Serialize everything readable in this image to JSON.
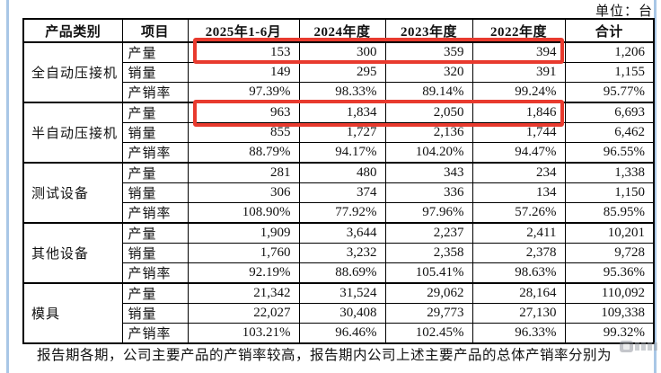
{
  "page": {
    "unit_label": "单位：台"
  },
  "table": {
    "headers": [
      "产品类别",
      "项目",
      "2025年1-6月",
      "2024年度",
      "2023年度",
      "2022年度",
      "合计"
    ],
    "groups": [
      {
        "category": "全自动压接机",
        "rows": [
          {
            "item": "产量",
            "values": [
              "153",
              "300",
              "359",
              "394",
              "1,206"
            ],
            "highlighted": true
          },
          {
            "item": "销量",
            "values": [
              "149",
              "295",
              "320",
              "391",
              "1,155"
            ],
            "highlighted": false
          },
          {
            "item": "产销率",
            "values": [
              "97.39%",
              "98.33%",
              "89.14%",
              "99.24%",
              "95.77%"
            ],
            "highlighted": false
          }
        ]
      },
      {
        "category": "半自动压接机",
        "rows": [
          {
            "item": "产量",
            "values": [
              "963",
              "1,834",
              "2,050",
              "1,846",
              "6,693"
            ],
            "highlighted": true
          },
          {
            "item": "销量",
            "values": [
              "855",
              "1,727",
              "2,136",
              "1,744",
              "6,462"
            ],
            "highlighted": false
          },
          {
            "item": "产销率",
            "values": [
              "88.79%",
              "94.17%",
              "104.20%",
              "94.47%",
              "96.55%"
            ],
            "highlighted": false
          }
        ]
      },
      {
        "category": "测试设备",
        "rows": [
          {
            "item": "产量",
            "values": [
              "281",
              "480",
              "343",
              "234",
              "1,338"
            ],
            "highlighted": false
          },
          {
            "item": "销量",
            "values": [
              "306",
              "374",
              "336",
              "134",
              "1,150"
            ],
            "highlighted": false
          },
          {
            "item": "产销率",
            "values": [
              "108.90%",
              "77.92%",
              "97.96%",
              "57.26%",
              "85.95%"
            ],
            "highlighted": false
          }
        ]
      },
      {
        "category": "其他设备",
        "rows": [
          {
            "item": "产量",
            "values": [
              "1,909",
              "3,644",
              "2,237",
              "2,411",
              "10,201"
            ],
            "highlighted": false
          },
          {
            "item": "销量",
            "values": [
              "1,760",
              "3,232",
              "2,358",
              "2,378",
              "9,728"
            ],
            "highlighted": false
          },
          {
            "item": "产销率",
            "values": [
              "92.19%",
              "88.69%",
              "105.41%",
              "98.63%",
              "95.36%"
            ],
            "highlighted": false
          }
        ]
      },
      {
        "category": "模具",
        "rows": [
          {
            "item": "产量",
            "values": [
              "21,342",
              "31,524",
              "29,062",
              "28,164",
              "110,092"
            ],
            "highlighted": false
          },
          {
            "item": "销量",
            "values": [
              "22,027",
              "30,408",
              "29,773",
              "27,130",
              "109,338"
            ],
            "highlighted": false
          },
          {
            "item": "产销率",
            "values": [
              "103.21%",
              "96.46%",
              "102.45%",
              "96.33%",
              "99.32%"
            ],
            "highlighted": false
          }
        ]
      }
    ]
  },
  "footer": {
    "text": "报告期各期，公司主要产品的产销率较高，报告期内公司上述主要产品的总体产销率分别为"
  },
  "annotations": {
    "highlight_color": "#e83a2e",
    "side_line_color": "#a9c7e6",
    "highlighted_cells_note": "red boxes around 产量 rows of 全自动压接机 and 半自动压接机 for year columns 2025年1-6月 through 2022年度"
  },
  "icons": {
    "watermark": "watermark-logo"
  }
}
